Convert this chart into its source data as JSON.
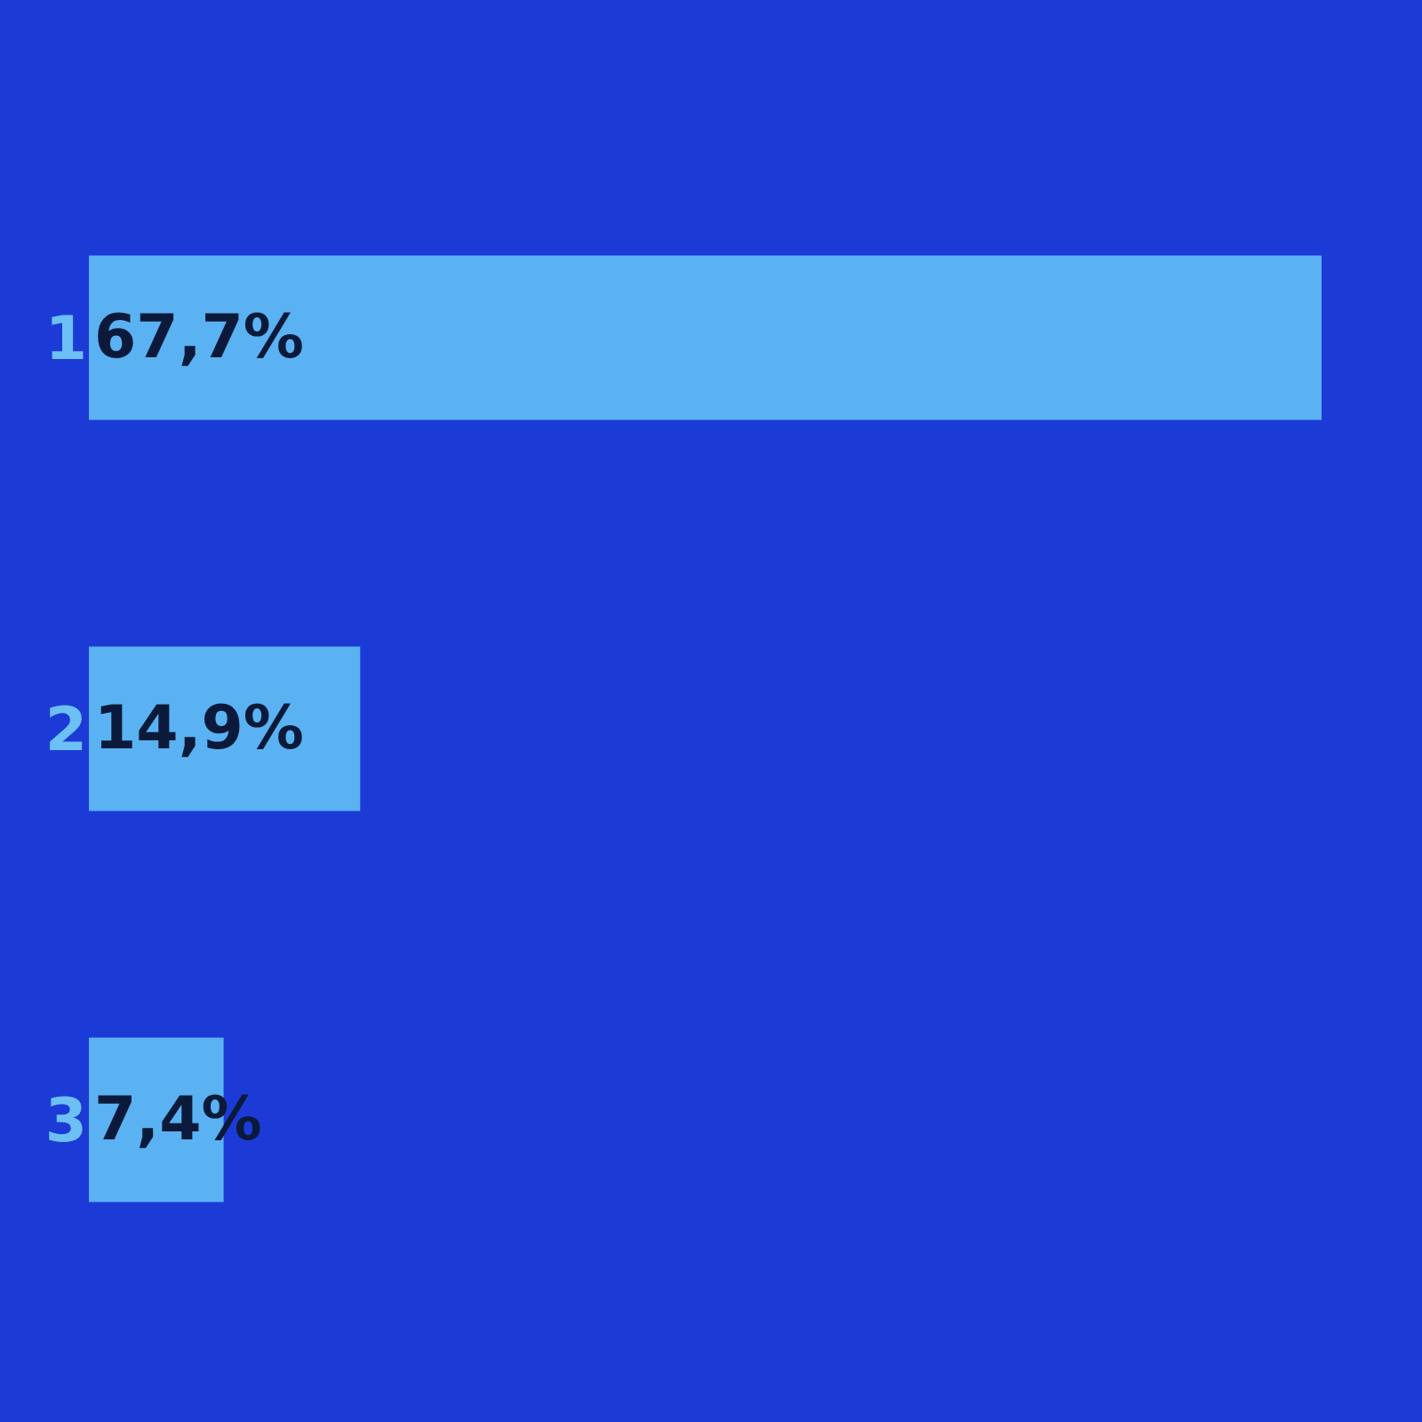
{
  "chart_data": {
    "type": "bar",
    "orientation": "horizontal",
    "categories": [
      "1",
      "2",
      "3"
    ],
    "values": [
      67.7,
      14.9,
      7.4
    ],
    "value_labels": [
      "67,7%",
      "14,9%",
      "7,4%"
    ],
    "color": "#5ab2f2",
    "legend": false
  }
}
